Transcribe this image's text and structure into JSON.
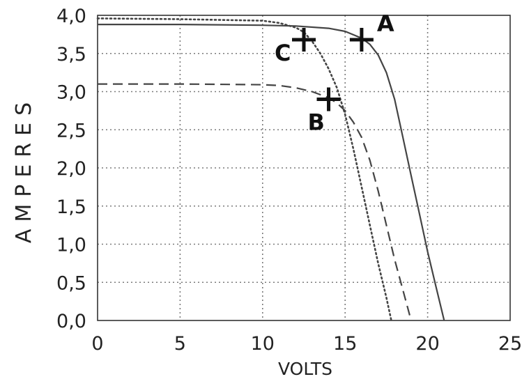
{
  "chart_data": {
    "type": "line",
    "title": "",
    "xlabel": "VOLTS",
    "ylabel": "AMPERES",
    "xlim": [
      0,
      25
    ],
    "ylim": [
      0,
      4
    ],
    "x_ticks": [
      0,
      5,
      10,
      15,
      20,
      25
    ],
    "x_tick_labels": [
      "0",
      "5",
      "10",
      "15",
      "20",
      "25"
    ],
    "y_ticks": [
      0,
      0.5,
      1,
      1.5,
      2,
      2.5,
      3,
      3.5,
      4
    ],
    "y_tick_labels": [
      "0,0",
      "0,5",
      "1,0",
      "1,5",
      "2,0",
      "2,5",
      "3,0",
      "3,5",
      "4,0"
    ],
    "grid": true,
    "series": [
      {
        "style": "solid",
        "color": "#444444",
        "x": [
          0,
          5,
          10,
          12,
          14,
          15,
          16,
          16.5,
          17,
          17.5,
          18,
          18.5,
          19,
          19.5,
          20,
          20.5,
          21
        ],
        "y": [
          3.88,
          3.88,
          3.87,
          3.86,
          3.83,
          3.79,
          3.7,
          3.62,
          3.48,
          3.25,
          2.9,
          2.4,
          1.9,
          1.4,
          0.9,
          0.45,
          0
        ]
      },
      {
        "style": "dashed",
        "color": "#444444",
        "x": [
          0,
          5,
          10,
          11,
          12,
          13,
          14,
          14.5,
          15,
          15.5,
          16,
          16.5,
          17,
          17.5,
          18,
          18.5,
          19
        ],
        "y": [
          3.1,
          3.1,
          3.09,
          3.08,
          3.05,
          3.0,
          2.92,
          2.85,
          2.75,
          2.6,
          2.4,
          2.1,
          1.7,
          1.25,
          0.8,
          0.4,
          0
        ]
      },
      {
        "style": "dotted",
        "color": "#444444",
        "x": [
          0,
          5,
          10,
          11,
          12,
          12.5,
          13,
          13.5,
          14,
          14.5,
          15,
          15.5,
          16,
          16.5,
          17,
          17.5,
          17.8
        ],
        "y": [
          3.96,
          3.95,
          3.93,
          3.9,
          3.84,
          3.78,
          3.66,
          3.5,
          3.3,
          3.05,
          2.7,
          2.25,
          1.75,
          1.25,
          0.75,
          0.3,
          0
        ]
      }
    ],
    "annotations": [
      {
        "label": "A",
        "x": 16.0,
        "y": 3.68
      },
      {
        "label": "B",
        "x": 14.0,
        "y": 2.9
      },
      {
        "label": "C",
        "x": 12.5,
        "y": 3.68
      }
    ]
  }
}
